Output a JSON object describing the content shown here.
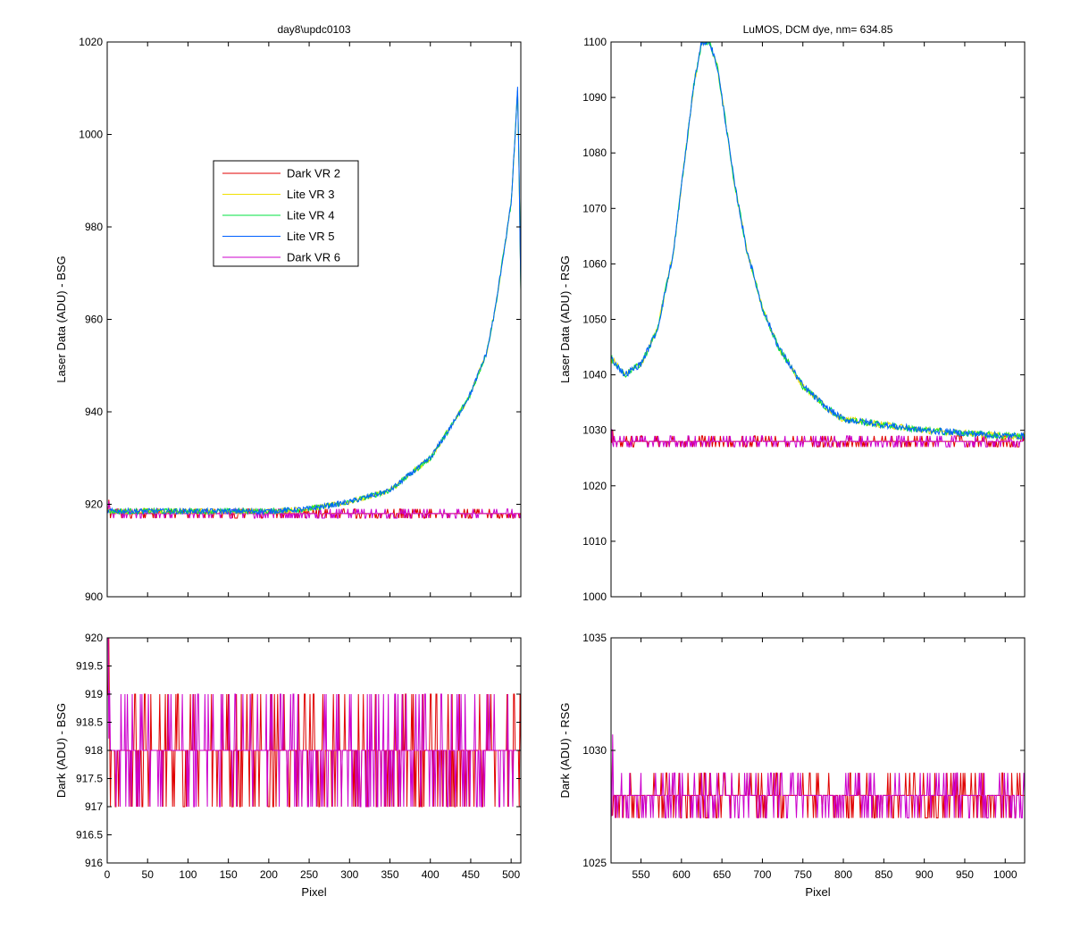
{
  "chart_data": [
    {
      "id": "top_left",
      "type": "line",
      "title": "day8\\updc0103",
      "xlabel": "",
      "ylabel": "Laser Data (ADU) - BSG",
      "xlim": [
        0,
        512
      ],
      "ylim": [
        900,
        1020
      ],
      "yticks": [
        900,
        920,
        940,
        960,
        980,
        1000,
        1020
      ],
      "xticks": [
        0,
        50,
        100,
        150,
        200,
        250,
        300,
        350,
        400,
        450,
        500
      ],
      "show_xticklabels": false,
      "legend": {
        "placement": "upper-left-center",
        "entries": [
          "Dark VR 2",
          "Lite VR 3",
          "Lite VR 4",
          "Lite VR 5",
          "Dark VR 6"
        ]
      },
      "series": [
        {
          "name": "Dark VR 2",
          "color": "#e00000",
          "kind": "noise",
          "base": 918,
          "levels": [
            917,
            918,
            919
          ],
          "x": [
            1,
            512
          ]
        },
        {
          "name": "Dark VR 6",
          "color": "#cc00cc",
          "kind": "noise",
          "base": 918,
          "levels": [
            917,
            918,
            919
          ],
          "x": [
            1,
            512
          ]
        },
        {
          "name": "Lite VR 3",
          "color": "#f0e000",
          "kind": "curve",
          "x": [
            1,
            100,
            200,
            250,
            300,
            350,
            400,
            430,
            450,
            470,
            480,
            500,
            505,
            508,
            510,
            512
          ],
          "y": [
            918.5,
            918.5,
            918.5,
            919,
            920.5,
            923,
            930,
            938,
            944,
            953,
            962,
            985,
            1000,
            1010,
            990,
            966
          ]
        },
        {
          "name": "Lite VR 4",
          "color": "#00e040",
          "kind": "curve",
          "x": [
            1,
            100,
            200,
            250,
            300,
            350,
            400,
            430,
            450,
            470,
            480,
            500,
            505,
            508,
            510,
            512
          ],
          "y": [
            918.5,
            918.5,
            918.5,
            919,
            920.5,
            923,
            930,
            938,
            944,
            953,
            962,
            985,
            1000,
            1010,
            990,
            966
          ]
        },
        {
          "name": "Lite VR 5",
          "color": "#0060ff",
          "kind": "curve",
          "x": [
            1,
            100,
            200,
            250,
            300,
            350,
            400,
            430,
            450,
            470,
            480,
            500,
            505,
            508,
            510,
            512
          ],
          "y": [
            918.5,
            918.5,
            918.5,
            919,
            920.5,
            923,
            930,
            938,
            944,
            953,
            962,
            985,
            1000,
            1010,
            990,
            966
          ]
        }
      ]
    },
    {
      "id": "top_right",
      "type": "line",
      "title": "LuMOS, DCM dye, nm= 634.85",
      "xlabel": "",
      "ylabel": "Laser Data (ADU) - RSG",
      "xlim": [
        513,
        1024
      ],
      "ylim": [
        1000,
        1100
      ],
      "yticks": [
        1000,
        1010,
        1020,
        1030,
        1040,
        1050,
        1060,
        1070,
        1080,
        1090,
        1100
      ],
      "xticks": [
        550,
        600,
        650,
        700,
        750,
        800,
        850,
        900,
        950,
        1000
      ],
      "show_xticklabels": false,
      "series": [
        {
          "name": "Dark VR 2",
          "color": "#e00000",
          "kind": "noise",
          "base": 1027.5,
          "levels": [
            1027,
            1028,
            1029
          ],
          "x": [
            513,
            1024
          ]
        },
        {
          "name": "Dark VR 6",
          "color": "#cc00cc",
          "kind": "noise",
          "base": 1027.5,
          "levels": [
            1027,
            1028,
            1029
          ],
          "x": [
            513,
            1024
          ]
        },
        {
          "name": "Lite VR 3",
          "color": "#f0e000",
          "kind": "curve",
          "x": [
            513,
            530,
            550,
            570,
            590,
            605,
            615,
            625,
            635,
            645,
            655,
            665,
            680,
            700,
            720,
            750,
            780,
            800,
            850,
            900,
            1000,
            1024
          ],
          "y": [
            1043,
            1040,
            1042,
            1048,
            1062,
            1080,
            1092,
            1100,
            1100,
            1095,
            1085,
            1075,
            1063,
            1052,
            1045,
            1038,
            1034,
            1032,
            1031,
            1030,
            1029,
            1029
          ]
        },
        {
          "name": "Lite VR 4",
          "color": "#00e040",
          "kind": "curve",
          "x": [
            513,
            530,
            550,
            570,
            590,
            605,
            615,
            625,
            635,
            645,
            655,
            665,
            680,
            700,
            720,
            750,
            780,
            800,
            850,
            900,
            1000,
            1024
          ],
          "y": [
            1043,
            1040,
            1042,
            1048,
            1062,
            1080,
            1092,
            1100,
            1100,
            1095,
            1085,
            1075,
            1063,
            1052,
            1045,
            1038,
            1034,
            1032,
            1031,
            1030,
            1029,
            1029
          ]
        },
        {
          "name": "Lite VR 5",
          "color": "#0060ff",
          "kind": "curve",
          "x": [
            513,
            530,
            550,
            570,
            590,
            605,
            615,
            625,
            635,
            645,
            655,
            665,
            680,
            700,
            720,
            750,
            780,
            800,
            850,
            900,
            1000,
            1024
          ],
          "y": [
            1043,
            1040,
            1042,
            1048,
            1062,
            1080,
            1092,
            1100,
            1100,
            1095,
            1085,
            1075,
            1063,
            1052,
            1045,
            1038,
            1034,
            1032,
            1031,
            1030,
            1029,
            1029
          ]
        }
      ]
    },
    {
      "id": "bottom_left",
      "type": "line",
      "title": "",
      "xlabel": "Pixel",
      "ylabel": "Dark (ADU) - BSG",
      "xlim": [
        0,
        512
      ],
      "ylim": [
        916,
        920
      ],
      "yticks": [
        916,
        916.5,
        917,
        917.5,
        918,
        918.5,
        919,
        919.5,
        920
      ],
      "xticks": [
        0,
        50,
        100,
        150,
        200,
        250,
        300,
        350,
        400,
        450,
        500
      ],
      "show_xticklabels": true,
      "series": [
        {
          "name": "Dark VR 2",
          "color": "#e00000",
          "kind": "noise",
          "base": 918,
          "levels": [
            917,
            918,
            919
          ],
          "x": [
            1,
            512
          ]
        },
        {
          "name": "Dark VR 6",
          "color": "#cc00cc",
          "kind": "noise",
          "base": 918,
          "levels": [
            917,
            918,
            919
          ],
          "x": [
            1,
            512
          ]
        }
      ]
    },
    {
      "id": "bottom_right",
      "type": "line",
      "title": "",
      "xlabel": "Pixel",
      "ylabel": "Dark (ADU) - RSG",
      "xlim": [
        513,
        1024
      ],
      "ylim": [
        1025,
        1035
      ],
      "yticks": [
        1025,
        1030,
        1035
      ],
      "xticks": [
        550,
        600,
        650,
        700,
        750,
        800,
        850,
        900,
        950,
        1000
      ],
      "show_xticklabels": true,
      "series": [
        {
          "name": "Dark VR 2",
          "color": "#e00000",
          "kind": "noise",
          "base": 1027.5,
          "levels": [
            1027,
            1028,
            1029
          ],
          "x": [
            513,
            1024
          ]
        },
        {
          "name": "Dark VR 6",
          "color": "#cc00cc",
          "kind": "noise",
          "base": 1027.5,
          "levels": [
            1027,
            1028,
            1029
          ],
          "x": [
            513,
            1024
          ]
        }
      ]
    }
  ]
}
